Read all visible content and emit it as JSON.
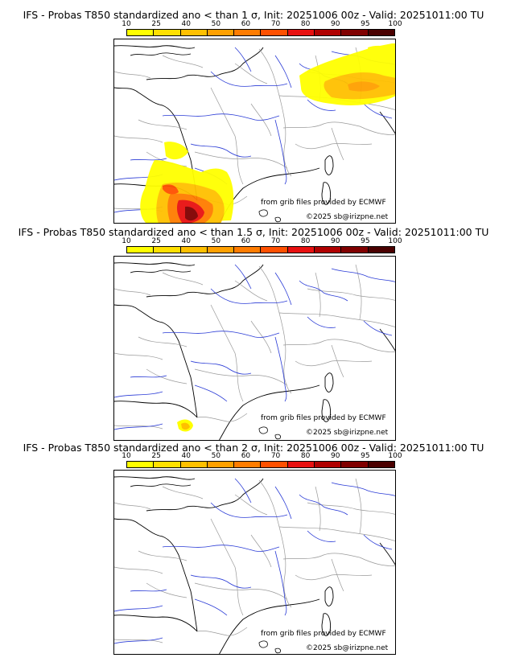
{
  "colorbar": {
    "ticks": [
      "10",
      "25",
      "40",
      "50",
      "60",
      "70",
      "80",
      "90",
      "95",
      "100"
    ],
    "colors": [
      "#ffff00",
      "#ffe000",
      "#ffc000",
      "#ffa000",
      "#ff7c00",
      "#ff5000",
      "#e81010",
      "#b00000",
      "#800000",
      "#4a0000"
    ]
  },
  "panels": [
    {
      "title": "IFS - Probas T850  standardized ano < than 1 σ, Init: 20251006 00z - Valid: 20251011:00 TU",
      "credit_ecmwf": "from grib files provided by ECMWF",
      "credit_site": "©2025 sb@irizpne.net",
      "probability_areas": [
        "north-east (Germany/Czechia)",
        "south-west (Pyrenees/Aquitaine)"
      ]
    },
    {
      "title": "IFS - Probas T850  standardized ano < than 1.5 σ, Init: 20251006 00z - Valid: 20251011:00 TU",
      "credit_ecmwf": "from grib files provided by ECMWF",
      "credit_site": "©2025 sb@irizpne.net",
      "probability_areas": [
        "central Pyrenees"
      ]
    },
    {
      "title": "IFS - Probas T850  standardized ano < than 2 σ, Init: 20251006 00z - Valid: 20251011:00 TU",
      "credit_ecmwf": "from grib files provided by ECMWF",
      "credit_site": "©2025 sb@irizpne.net",
      "probability_areas": []
    }
  ],
  "colors": {
    "coast": "#000000",
    "borders": "#9a9a9a",
    "rivers": "#2a3bd6"
  }
}
